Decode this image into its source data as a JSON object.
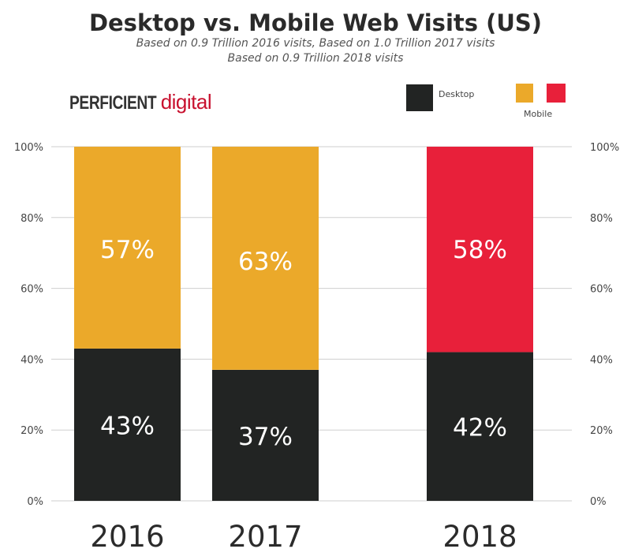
{
  "chart_data": {
    "type": "bar",
    "stacked": true,
    "title": "Desktop vs. Mobile Web Visits (US)",
    "subtitle_lines": [
      "Based on 0.9 Trillion 2016 visits, Based on 1.0 Trillion 2017 visits",
      "Based on 0.9 Trillion 2018 visits"
    ],
    "categories": [
      "2016",
      "2017",
      "2018"
    ],
    "series": [
      {
        "name": "Desktop",
        "values": [
          43,
          37,
          42
        ],
        "labels": [
          "43%",
          "37%",
          "42%"
        ],
        "color": "#222423"
      },
      {
        "name": "Mobile",
        "values": [
          57,
          63,
          58
        ],
        "labels": [
          "57%",
          "63%",
          "58%"
        ],
        "colors": [
          "#EBA92A",
          "#EBA92A",
          "#E8203A"
        ]
      }
    ],
    "ylim": [
      0,
      100
    ],
    "yticks": [
      "0%",
      "20%",
      "40%",
      "60%",
      "80%",
      "100%"
    ],
    "grid": true,
    "legend": {
      "position": "top-right",
      "desktop_label": "Desktop",
      "mobile_label": "Mobile",
      "mobile_colors": [
        "#EBA92A",
        "#E8203A"
      ]
    }
  },
  "logo": {
    "part1": "PERFICIENT",
    "part2": "digital"
  }
}
